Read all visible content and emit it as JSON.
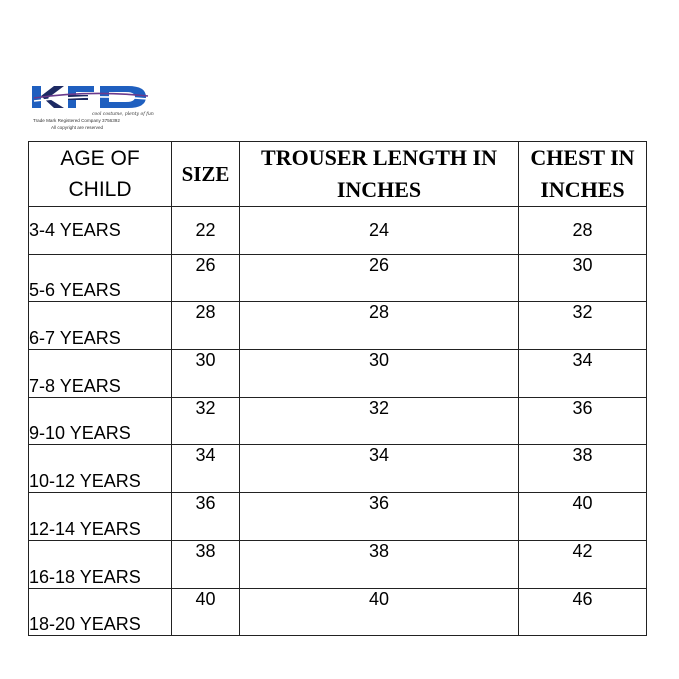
{
  "brand": {
    "logo_text": "KFD",
    "tagline": "cool costume, plenty of fun",
    "registration_lines": [
      "Trade Mark Registered Company 3756392",
      "All copyright are reserved"
    ],
    "colors": {
      "blue": "#1f5fbf",
      "navy": "#1d2a63",
      "purple": "#6a3a8c"
    }
  },
  "table": {
    "headers": {
      "age": [
        "AGE OF",
        "CHILD"
      ],
      "size": "SIZE",
      "trouser": [
        "TROUSER LENGTH IN",
        "INCHES"
      ],
      "chest": [
        "CHEST IN",
        "INCHES"
      ]
    },
    "rows": [
      {
        "age": "3-4 YEARS",
        "size": "22",
        "trouser": "24",
        "chest": "28"
      },
      {
        "age": "5-6 YEARS",
        "size": "26",
        "trouser": "26",
        "chest": "30"
      },
      {
        "age": "6-7 YEARS",
        "size": "28",
        "trouser": "28",
        "chest": "32"
      },
      {
        "age": "7-8 YEARS",
        "size": "30",
        "trouser": "30",
        "chest": "34"
      },
      {
        "age": "9-10 YEARS",
        "size": "32",
        "trouser": "32",
        "chest": "36"
      },
      {
        "age": "10-12 YEARS",
        "size": "34",
        "trouser": "34",
        "chest": "38"
      },
      {
        "age": "12-14 YEARS",
        "size": "36",
        "trouser": "36",
        "chest": "40"
      },
      {
        "age": "16-18 YEARS",
        "size": "38",
        "trouser": "38",
        "chest": "42"
      },
      {
        "age": "18-20 YEARS",
        "size": "40",
        "trouser": "40",
        "chest": "46"
      }
    ]
  }
}
